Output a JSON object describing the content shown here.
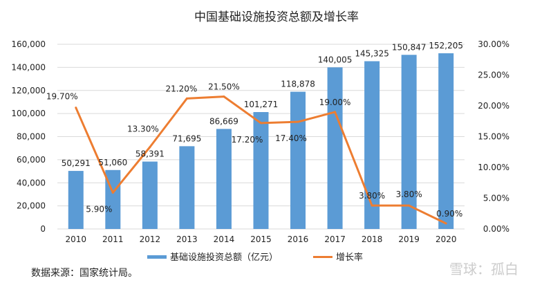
{
  "chart_data": {
    "type": "bar+line",
    "title": "中国基础设施投资总额及增长率",
    "categories": [
      "2010",
      "2011",
      "2012",
      "2013",
      "2014",
      "2015",
      "2016",
      "2017",
      "2018",
      "2019",
      "2020"
    ],
    "series": [
      {
        "name": "基础设施投资总额（亿元）",
        "type": "bar",
        "axis": "left",
        "color": "#5b9bd5",
        "values": [
          50291,
          51060,
          58391,
          71695,
          86669,
          101271,
          118878,
          140005,
          145325,
          150847,
          152205
        ],
        "labels": [
          "50,291",
          "51,060",
          "58,391",
          "71,695",
          "86,669",
          "101,271",
          "118,878",
          "140,005",
          "145,325",
          "150,847",
          "152,205"
        ]
      },
      {
        "name": "增长率",
        "type": "line",
        "axis": "right",
        "color": "#ed7d31",
        "values": [
          19.7,
          5.9,
          13.3,
          21.2,
          21.5,
          17.2,
          17.4,
          19.0,
          3.8,
          3.8,
          0.9
        ],
        "labels": [
          "19.70%",
          "5.90%",
          "13.30%",
          "21.20%",
          "21.50%",
          "17.20%",
          "17.40%",
          "19.00%",
          "3.80%",
          "3.80%",
          "0.90%"
        ]
      }
    ],
    "y_left": {
      "range": [
        0,
        160000
      ],
      "ticks": [
        "0",
        "20,000",
        "40,000",
        "60,000",
        "80,000",
        "100,000",
        "120,000",
        "140,000",
        "160,000"
      ]
    },
    "y_right": {
      "range": [
        0,
        30
      ],
      "ticks": [
        "0.00%",
        "5.00%",
        "10.00%",
        "15.00%",
        "20.00%",
        "25.00%",
        "30.00%"
      ]
    },
    "grid": true,
    "legend": "bottom"
  },
  "source": "数据来源：国家统计局。",
  "watermark": "雪球：孤白"
}
